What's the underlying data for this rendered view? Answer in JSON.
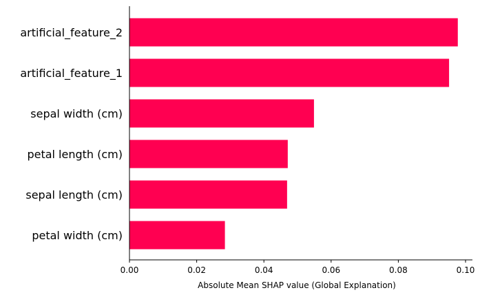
{
  "chart_data": {
    "type": "bar",
    "orientation": "horizontal",
    "categories": [
      "artificial_feature_2",
      "artificial_feature_1",
      "sepal width (cm)",
      "petal length (cm)",
      "sepal length (cm)",
      "petal width (cm)"
    ],
    "values": [
      0.0977,
      0.0951,
      0.0549,
      0.0471,
      0.0469,
      0.0284
    ],
    "bar_color": "#ff0051",
    "xlabel": "Absolute Mean SHAP value (Global Explanation)",
    "ylabel": "",
    "xlim": [
      0.0,
      0.1
    ],
    "xticks": [
      "0.00",
      "0.02",
      "0.04",
      "0.06",
      "0.08",
      "0.10"
    ],
    "grid": false
  }
}
